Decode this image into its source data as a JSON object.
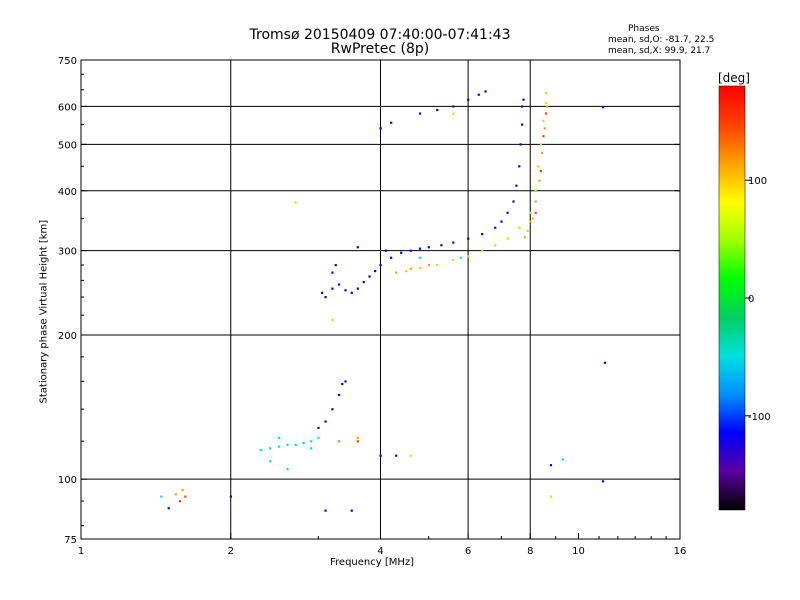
{
  "chart_data": {
    "type": "scatter",
    "title": "Tromsø 20150409 07:40:00-07:41:43",
    "subtitle": "RwPretec (8p)",
    "info": {
      "heading": "Phases",
      "o_line": "mean, sd,O: -81.7, 22.5",
      "x_line": "mean, sd,X:  99.9, 21.7"
    },
    "xlabel": "Frequency [MHz]",
    "ylabel": "Stationary phase Virtual Height [km]",
    "x_scale": "log",
    "y_scale": "log",
    "xlim": [
      1,
      16
    ],
    "ylim": [
      75,
      750
    ],
    "x_ticks": [
      1,
      2,
      4,
      6,
      8,
      10,
      16
    ],
    "y_ticks": [
      75,
      100,
      200,
      300,
      400,
      500,
      600,
      750
    ],
    "grid_x": [
      2,
      4,
      6,
      8
    ],
    "grid_y": [
      100,
      200,
      300,
      400,
      500,
      600
    ],
    "colorbar": {
      "label": "[deg]",
      "min": -180,
      "max": 180,
      "ticks": [
        100,
        0,
        -100
      ],
      "colors": [
        "#000000",
        "#5a00a0",
        "#0000ff",
        "#0090ff",
        "#00e0e0",
        "#00d060",
        "#00ff00",
        "#a0ff00",
        "#ffff00",
        "#ffa000",
        "#ff4000",
        "#ff0000"
      ]
    },
    "series": [
      {
        "phase": -100,
        "points": [
          [
            3.05,
            245
          ],
          [
            3.1,
            240
          ],
          [
            3.2,
            250
          ],
          [
            3.3,
            255
          ],
          [
            3.4,
            248
          ],
          [
            3.5,
            245
          ],
          [
            3.6,
            250
          ],
          [
            3.7,
            258
          ],
          [
            3.8,
            265
          ],
          [
            3.9,
            272
          ],
          [
            4.0,
            280
          ],
          [
            4.2,
            290
          ],
          [
            4.4,
            297
          ],
          [
            4.6,
            300
          ],
          [
            4.8,
            303
          ],
          [
            5.0,
            305
          ],
          [
            5.3,
            308
          ],
          [
            5.6,
            312
          ],
          [
            6.0,
            318
          ],
          [
            6.4,
            325
          ],
          [
            6.8,
            335
          ],
          [
            7.0,
            345
          ],
          [
            7.2,
            360
          ],
          [
            7.4,
            380
          ],
          [
            7.5,
            410
          ],
          [
            7.6,
            450
          ],
          [
            7.65,
            500
          ],
          [
            7.7,
            550
          ],
          [
            7.7,
            600
          ],
          [
            7.75,
            620
          ],
          [
            3.25,
            280
          ],
          [
            3.2,
            270
          ],
          [
            3.6,
            305
          ],
          [
            4.1,
            300
          ],
          [
            4.0,
            540
          ],
          [
            4.2,
            555
          ],
          [
            4.8,
            580
          ],
          [
            5.2,
            590
          ],
          [
            5.6,
            600
          ],
          [
            6.0,
            620
          ],
          [
            6.3,
            635
          ],
          [
            6.5,
            645
          ],
          [
            3.35,
            158
          ],
          [
            3.3,
            150
          ],
          [
            3.2,
            140
          ],
          [
            3.1,
            132
          ],
          [
            3.0,
            128
          ],
          [
            3.4,
            160
          ],
          [
            3.3,
            120
          ],
          [
            4.0,
            112
          ],
          [
            4.3,
            112
          ],
          [
            3.1,
            86
          ],
          [
            3.5,
            86
          ],
          [
            8.8,
            107
          ],
          [
            11.2,
            598
          ],
          [
            11.3,
            175
          ],
          [
            11.2,
            99
          ],
          [
            1.5,
            87
          ],
          [
            2.0,
            92
          ]
        ]
      },
      {
        "phase": -60,
        "points": [
          [
            2.3,
            115
          ],
          [
            2.4,
            116
          ],
          [
            2.5,
            117
          ],
          [
            2.6,
            118
          ],
          [
            2.7,
            118
          ],
          [
            2.8,
            119
          ],
          [
            2.9,
            120
          ],
          [
            2.5,
            122
          ],
          [
            3.0,
            122
          ],
          [
            2.4,
            109
          ],
          [
            2.6,
            105
          ],
          [
            2.9,
            116
          ],
          [
            1.45,
            92
          ],
          [
            9.3,
            110
          ],
          [
            4.8,
            290
          ],
          [
            5.8,
            290
          ]
        ]
      },
      {
        "phase": 60,
        "points": [
          [
            4.5,
            272
          ],
          [
            4.8,
            276
          ],
          [
            5.2,
            280
          ],
          [
            5.6,
            287
          ],
          [
            6.0,
            292
          ],
          [
            6.4,
            300
          ],
          [
            6.8,
            308
          ],
          [
            7.2,
            318
          ],
          [
            7.6,
            335
          ],
          [
            8.0,
            360
          ],
          [
            8.2,
            400
          ],
          [
            8.3,
            450
          ],
          [
            8.4,
            500
          ],
          [
            8.5,
            560
          ],
          [
            8.6,
            610
          ],
          [
            8.6,
            640
          ],
          [
            7.9,
            330
          ],
          [
            8.1,
            350
          ],
          [
            3.2,
            215
          ],
          [
            2.7,
            378
          ],
          [
            5.6,
            580
          ],
          [
            4.6,
            112
          ],
          [
            8.8,
            92
          ]
        ]
      },
      {
        "phase": 110,
        "points": [
          [
            4.3,
            270
          ],
          [
            4.6,
            275
          ],
          [
            5.0,
            280
          ],
          [
            7.8,
            320
          ],
          [
            8.0,
            345
          ],
          [
            8.2,
            380
          ],
          [
            8.35,
            420
          ],
          [
            8.45,
            480
          ],
          [
            8.55,
            540
          ],
          [
            8.65,
            600
          ],
          [
            3.3,
            120
          ],
          [
            3.6,
            122
          ],
          [
            1.55,
            93
          ],
          [
            1.6,
            95
          ]
        ]
      },
      {
        "phase": 150,
        "points": [
          [
            1.58,
            90
          ],
          [
            1.62,
            92
          ],
          [
            3.6,
            120
          ],
          [
            8.2,
            360
          ],
          [
            8.4,
            440
          ],
          [
            8.5,
            520
          ],
          [
            8.6,
            580
          ]
        ]
      }
    ]
  }
}
